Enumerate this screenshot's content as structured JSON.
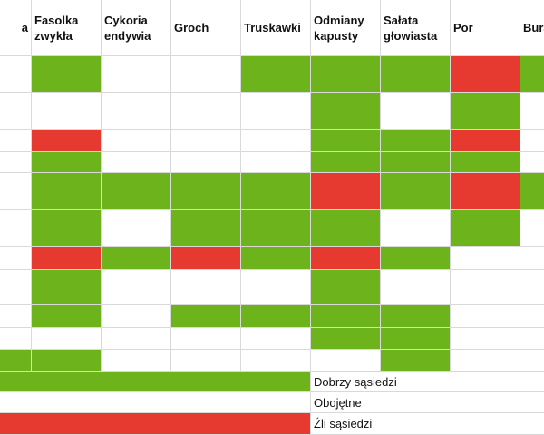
{
  "header": {
    "columns": [
      "a",
      "Fasolka zwykła",
      "Cykoria endywia",
      "Groch",
      "Truskawki",
      "Odmiany kapusty",
      "Sałata głowiasta",
      "Por",
      "Bura liści"
    ]
  },
  "table": {
    "rows": [
      [
        "#ffffff",
        "#6db31b",
        "#ffffff",
        "#ffffff",
        "#6db31b",
        "#6db31b",
        "#6db31b",
        "#e63a30",
        "#6db31b"
      ],
      [
        "#ffffff",
        "#ffffff",
        "#ffffff",
        "#ffffff",
        "#ffffff",
        "#6db31b",
        "#ffffff",
        "#6db31b",
        "#ffffff"
      ],
      [
        "#ffffff",
        "#e63a30",
        "#ffffff",
        "#ffffff",
        "#ffffff",
        "#6db31b",
        "#6db31b",
        "#e63a30",
        "#ffffff"
      ],
      [
        "#ffffff",
        "#6db31b",
        "#ffffff",
        "#ffffff",
        "#ffffff",
        "#6db31b",
        "#6db31b",
        "#6db31b",
        "#ffffff"
      ],
      [
        "#ffffff",
        "#6db31b",
        "#6db31b",
        "#6db31b",
        "#6db31b",
        "#e63a30",
        "#6db31b",
        "#e63a30",
        "#6db31b"
      ],
      [
        "#ffffff",
        "#6db31b",
        "#ffffff",
        "#6db31b",
        "#6db31b",
        "#6db31b",
        "#ffffff",
        "#6db31b",
        "#ffffff"
      ],
      [
        "#ffffff",
        "#e63a30",
        "#6db31b",
        "#e63a30",
        "#6db31b",
        "#e63a30",
        "#6db31b",
        "#ffffff",
        "#ffffff"
      ],
      [
        "#ffffff",
        "#6db31b",
        "#ffffff",
        "#ffffff",
        "#ffffff",
        "#6db31b",
        "#ffffff",
        "#ffffff",
        "#ffffff"
      ],
      [
        "#ffffff",
        "#6db31b",
        "#ffffff",
        "#6db31b",
        "#6db31b",
        "#6db31b",
        "#6db31b",
        "#ffffff",
        "#ffffff"
      ],
      [
        "#ffffff",
        "#ffffff",
        "#ffffff",
        "#ffffff",
        "#ffffff",
        "#6db31b",
        "#6db31b",
        "#ffffff",
        "#ffffff"
      ],
      [
        "#6db31b",
        "#6db31b",
        "#ffffff",
        "#ffffff",
        "#ffffff",
        "#ffffff",
        "#6db31b",
        "#ffffff",
        "#ffffff"
      ]
    ]
  },
  "legend": [
    {
      "label": "Dobrzy sąsiedzi",
      "color": "#6db31b"
    },
    {
      "label": "Obojętne",
      "color": "#ffffff"
    },
    {
      "label": "Źli sąsiedzi",
      "color": "#e63a30"
    }
  ]
}
